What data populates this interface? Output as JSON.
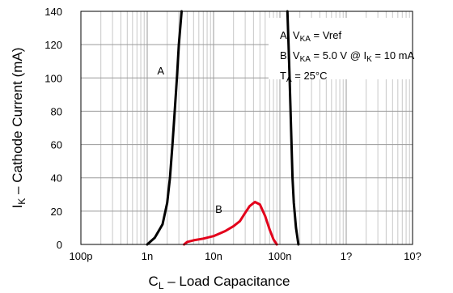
{
  "chart_data": {
    "type": "line",
    "xlabel": "C",
    "xlabel_sub": "L",
    "xlabel_rest": " – Load Capacitance",
    "ylabel": "I",
    "ylabel_sub": "K",
    "ylabel_rest": " – Cathode Current (mA)",
    "x_scale": "log",
    "x_ticks": [
      {
        "value": 1e-10,
        "label": "100p"
      },
      {
        "value": 1e-09,
        "label": "1n"
      },
      {
        "value": 1e-08,
        "label": "10n"
      },
      {
        "value": 1e-07,
        "label": "100n"
      },
      {
        "value": 1e-06,
        "label": "1?"
      },
      {
        "value": 1e-05,
        "label": "10?"
      }
    ],
    "xlim": [
      1e-10,
      1e-05
    ],
    "ylim": [
      0,
      140
    ],
    "y_ticks": [
      0,
      20,
      40,
      60,
      80,
      100,
      120,
      140
    ],
    "grid": true,
    "series": [
      {
        "name": "A",
        "color": "#000000",
        "segments": [
          [
            [
              1e-09,
              0
            ],
            [
              1.3e-09,
              4
            ],
            [
              1.7e-09,
              12
            ],
            [
              2e-09,
              25
            ],
            [
              2.2e-09,
              40
            ],
            [
              2.4e-09,
              60
            ],
            [
              2.6e-09,
              80
            ],
            [
              2.8e-09,
              100
            ],
            [
              3e-09,
              120
            ],
            [
              3.3e-09,
              140
            ]
          ],
          [
            [
              1.3e-07,
              140
            ],
            [
              1.35e-07,
              120
            ],
            [
              1.4e-07,
              100
            ],
            [
              1.45e-07,
              80
            ],
            [
              1.5e-07,
              60
            ],
            [
              1.55e-07,
              40
            ],
            [
              1.62e-07,
              25
            ],
            [
              1.75e-07,
              10
            ],
            [
              1.9e-07,
              0
            ]
          ]
        ]
      },
      {
        "name": "B",
        "color": "#e3001b",
        "segments": [
          [
            [
              3.6e-09,
              0
            ],
            [
              4e-09,
              1.5
            ],
            [
              5e-09,
              2.5
            ],
            [
              7e-09,
              3.5
            ],
            [
              1e-08,
              5
            ],
            [
              1.5e-08,
              8
            ],
            [
              2e-08,
              11
            ],
            [
              2.5e-08,
              14
            ],
            [
              3e-08,
              19
            ],
            [
              3.5e-08,
              23
            ],
            [
              4.2e-08,
              25.5
            ],
            [
              5e-08,
              24
            ],
            [
              6e-08,
              17
            ],
            [
              7e-08,
              9
            ],
            [
              8e-08,
              3
            ],
            [
              9e-08,
              0
            ]
          ]
        ]
      }
    ],
    "curve_labels": [
      {
        "text": "A",
        "x": 1.6e-09,
        "y": 102
      },
      {
        "text": "B",
        "x": 1.2e-08,
        "y": 19
      }
    ],
    "annotations": [
      {
        "pre": "A. V",
        "sub": "KA",
        "post": " = Vref"
      },
      {
        "pre": "B. V",
        "sub": "KA",
        "post": " =  5.0 V @ I",
        "sub2": "K",
        "post2": " = 10 mA"
      },
      {
        "pre": "T",
        "sub": "A",
        "post": " = 25°C"
      }
    ]
  }
}
